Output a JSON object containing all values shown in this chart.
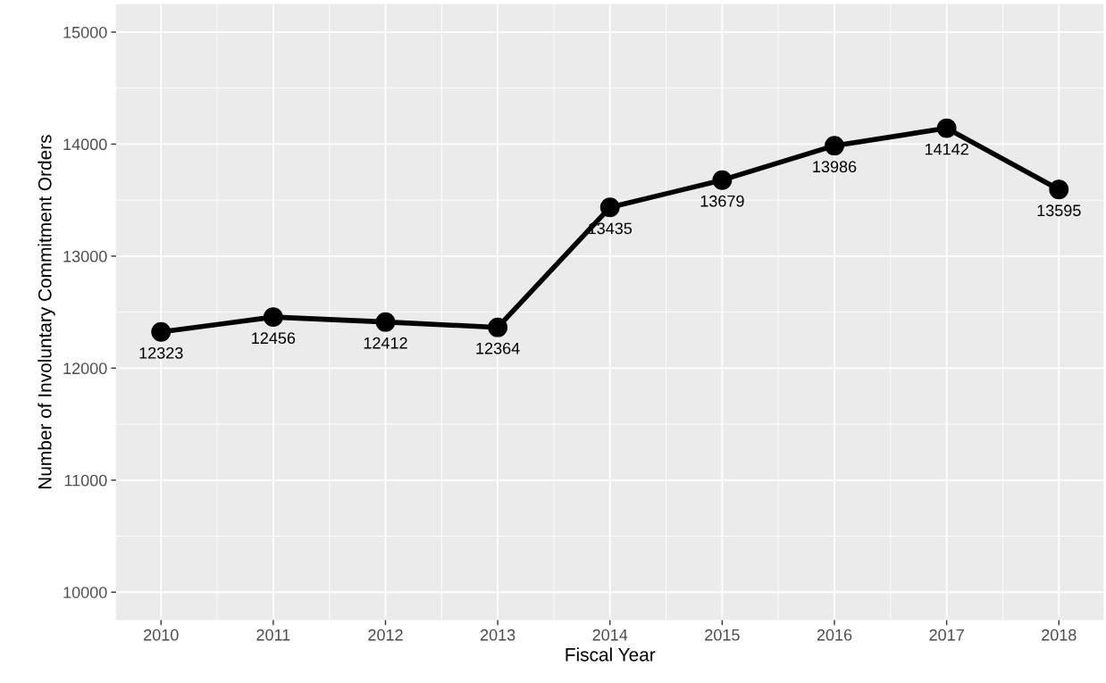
{
  "chart_data": {
    "type": "line",
    "xlabel": "Fiscal Year",
    "ylabel": "Number of Involuntary Commitment Orders",
    "x": [
      2010,
      2011,
      2012,
      2013,
      2014,
      2015,
      2016,
      2017,
      2018
    ],
    "series": [
      {
        "color": "#000000",
        "values": [
          12323,
          12456,
          12412,
          12364,
          13435,
          13679,
          13986,
          14142,
          13595
        ]
      }
    ],
    "xlim": [
      2009.6,
      2018.4
    ],
    "xticks": [
      2010,
      2011,
      2012,
      2013,
      2014,
      2015,
      2016,
      2017,
      2018
    ],
    "ylim": [
      9750,
      15250
    ],
    "yticks": [
      10000,
      11000,
      12000,
      13000,
      14000,
      15000
    ],
    "grid": true,
    "marker": "circle",
    "line_style": "solid",
    "data_labels": true
  }
}
